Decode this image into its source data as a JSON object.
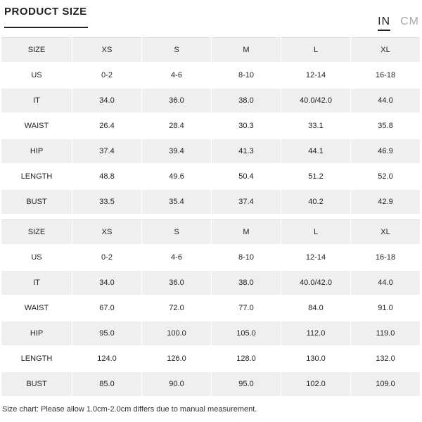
{
  "header": {
    "title": "PRODUCT SIZE",
    "unit_tabs": [
      {
        "label": "IN",
        "active": true
      },
      {
        "label": "CM",
        "active": false
      }
    ]
  },
  "tables": [
    {
      "unit": "IN",
      "rows": [
        [
          "SIZE",
          "XS",
          "S",
          "M",
          "L",
          "XL"
        ],
        [
          "US",
          "0-2",
          "4-6",
          "8-10",
          "12-14",
          "16-18"
        ],
        [
          "IT",
          "34.0",
          "36.0",
          "38.0",
          "40.0/42.0",
          "44.0"
        ],
        [
          "WAIST",
          "26.4",
          "28.4",
          "30.3",
          "33.1",
          "35.8"
        ],
        [
          "HIP",
          "37.4",
          "39.4",
          "41.3",
          "44.1",
          "46.9"
        ],
        [
          "LENGTH",
          "48.8",
          "49.6",
          "50.4",
          "51.2",
          "52.0"
        ],
        [
          "BUST",
          "33.5",
          "35.4",
          "37.4",
          "40.2",
          "42.9"
        ]
      ]
    },
    {
      "unit": "CM",
      "rows": [
        [
          "SIZE",
          "XS",
          "S",
          "M",
          "L",
          "XL"
        ],
        [
          "US",
          "0-2",
          "4-6",
          "8-10",
          "12-14",
          "16-18"
        ],
        [
          "IT",
          "34.0",
          "36.0",
          "38.0",
          "40.0/42.0",
          "44.0"
        ],
        [
          "WAIST",
          "67.0",
          "72.0",
          "77.0",
          "84.0",
          "91.0"
        ],
        [
          "HIP",
          "95.0",
          "100.0",
          "105.0",
          "112.0",
          "119.0"
        ],
        [
          "LENGTH",
          "124.0",
          "126.0",
          "128.0",
          "130.0",
          "132.0"
        ],
        [
          "BUST",
          "85.0",
          "90.0",
          "95.0",
          "102.0",
          "109.0"
        ]
      ]
    }
  ],
  "footnote": "Size chart: Please allow 1.0cm-2.0cm differs due to manual measurement.",
  "colors": {
    "row_alt": "#efefef",
    "text": "#222222",
    "inactive_tab": "#aaaaaa"
  }
}
